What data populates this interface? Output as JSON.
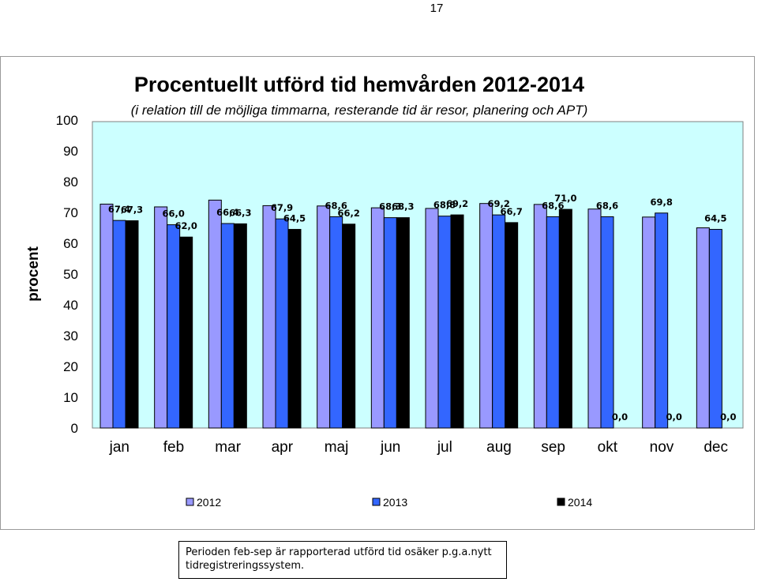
{
  "page_number": "17",
  "note": "Perioden feb-sep är rapporterad utförd tid osäker p.g.a.nytt tidregistreringssystem.",
  "chart_data": {
    "type": "bar",
    "title": "Procentuellt utförd tid hemvården 2012-2014",
    "subtitle": "(i relation till de möjliga timmarna, resterande tid är resor, planering och APT)",
    "xlabel": "",
    "ylabel": "procent",
    "ylim": [
      0,
      100
    ],
    "yticks": [
      "0",
      "10",
      "20",
      "30",
      "40",
      "50",
      "60",
      "70",
      "80",
      "90",
      "100"
    ],
    "grid": false,
    "plot_background": "#ccffff",
    "legend_position": "bottom",
    "categories": [
      "jan",
      "feb",
      "mar",
      "apr",
      "maj",
      "jun",
      "jul",
      "aug",
      "sep",
      "okt",
      "nov",
      "dec"
    ],
    "series": [
      {
        "name": "2012",
        "color": "#9999ff",
        "values": [
          72.7,
          71.8,
          74.0,
          72.2,
          72.1,
          71.5,
          71.3,
          72.9,
          72.6,
          71.1,
          68.5,
          65.0
        ],
        "labels": [
          "",
          "",
          "",
          "",
          "",
          "",
          "",
          "",
          "",
          "",
          "",
          ""
        ]
      },
      {
        "name": "2013",
        "color": "#3366ff",
        "values": [
          67.4,
          66.0,
          66.4,
          67.9,
          68.6,
          68.3,
          68.8,
          69.2,
          68.6,
          68.6,
          69.8,
          64.5
        ],
        "labels": [
          "67,4",
          "66,0",
          "66,4",
          "67,9",
          "68,6",
          "68,3",
          "68,8",
          "69,2",
          "68,6",
          "68,6",
          "69,8",
          "64,5"
        ]
      },
      {
        "name": "2014",
        "color": "#000000",
        "values": [
          67.3,
          62.0,
          66.3,
          64.5,
          66.2,
          68.3,
          69.2,
          66.7,
          71.0,
          0,
          0,
          0
        ],
        "labels": [
          "67,3",
          "62,0",
          "66,3",
          "64,5",
          "66,2",
          "68,3",
          "69,2",
          "66,7",
          "71,0",
          "0,0",
          "0,0",
          "0,0"
        ]
      }
    ]
  }
}
